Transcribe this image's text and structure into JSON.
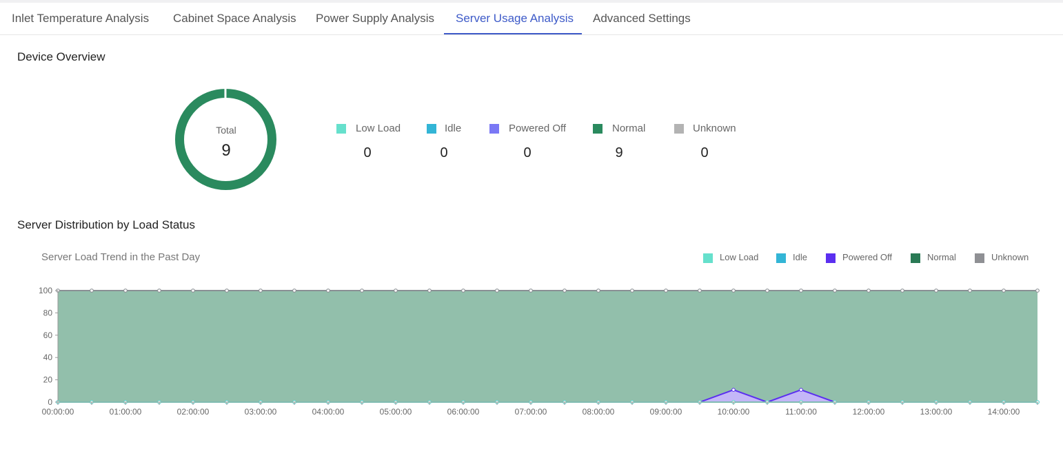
{
  "tabs": [
    {
      "label": "Inlet Temperature Analysis",
      "active": false
    },
    {
      "label": "Cabinet Space Analysis",
      "active": false
    },
    {
      "label": "Power Supply Analysis",
      "active": false
    },
    {
      "label": "Server Usage Analysis",
      "active": true
    },
    {
      "label": "Advanced Settings",
      "active": false
    }
  ],
  "overview": {
    "title": "Device Overview",
    "total_label": "Total",
    "total_value": "9",
    "legend": [
      {
        "label": "Low Load",
        "count": "0",
        "color": "#66e0cc"
      },
      {
        "label": "Idle",
        "count": "0",
        "color": "#33b5d6"
      },
      {
        "label": "Powered Off",
        "count": "0",
        "color": "#7a78f5"
      },
      {
        "label": "Normal",
        "count": "9",
        "color": "#2a8a5e"
      },
      {
        "label": "Unknown",
        "count": "0",
        "color": "#b3b3b3"
      }
    ]
  },
  "distribution": {
    "title": "Server Distribution by Load Status",
    "chart_title": "Server Load Trend in the Past Day",
    "legend": [
      {
        "label": "Low Load",
        "color": "#66e0cc"
      },
      {
        "label": "Idle",
        "color": "#33b5d6"
      },
      {
        "label": "Powered Off",
        "color": "#5b2ff0"
      },
      {
        "label": "Normal",
        "color": "#2a7a55"
      },
      {
        "label": "Unknown",
        "color": "#8f9094"
      }
    ]
  },
  "chart_data": {
    "type": "area",
    "title": "Server Load Trend in the Past Day",
    "xlabel": "",
    "ylabel": "",
    "ylim": [
      0,
      100
    ],
    "yticks": [
      0,
      20,
      40,
      60,
      80,
      100
    ],
    "x": [
      "00:00:00",
      "00:30:00",
      "01:00:00",
      "01:30:00",
      "02:00:00",
      "02:30:00",
      "03:00:00",
      "03:30:00",
      "04:00:00",
      "04:30:00",
      "05:00:00",
      "05:30:00",
      "06:00:00",
      "06:30:00",
      "07:00:00",
      "07:30:00",
      "08:00:00",
      "08:30:00",
      "09:00:00",
      "09:30:00",
      "10:00:00",
      "10:30:00",
      "11:00:00",
      "11:30:00",
      "12:00:00",
      "12:30:00",
      "13:00:00",
      "13:30:00",
      "14:00:00",
      "14:30:00"
    ],
    "xtick_labels": [
      "00:00:00",
      "01:00:00",
      "02:00:00",
      "03:00:00",
      "04:00:00",
      "05:00:00",
      "06:00:00",
      "07:00:00",
      "08:00:00",
      "09:00:00",
      "10:00:00",
      "11:00:00",
      "12:00:00",
      "13:00:00",
      "14:00:00"
    ],
    "series": [
      {
        "name": "Low Load",
        "color": "#66e0cc",
        "values": [
          0,
          0,
          0,
          0,
          0,
          0,
          0,
          0,
          0,
          0,
          0,
          0,
          0,
          0,
          0,
          0,
          0,
          0,
          0,
          0,
          0,
          0,
          0,
          0,
          0,
          0,
          0,
          0,
          0,
          0
        ]
      },
      {
        "name": "Idle",
        "color": "#33b5d6",
        "values": [
          0,
          0,
          0,
          0,
          0,
          0,
          0,
          0,
          0,
          0,
          0,
          0,
          0,
          0,
          0,
          0,
          0,
          0,
          0,
          0,
          0,
          0,
          0,
          0,
          0,
          0,
          0,
          0,
          0,
          0
        ]
      },
      {
        "name": "Powered Off",
        "color": "#5b2ff0",
        "values": [
          0,
          0,
          0,
          0,
          0,
          0,
          0,
          0,
          0,
          0,
          0,
          0,
          0,
          0,
          0,
          0,
          0,
          0,
          0,
          0,
          11,
          0,
          11,
          0,
          0,
          0,
          0,
          0,
          0,
          0
        ]
      },
      {
        "name": "Normal",
        "color": "#2a7a55",
        "values": [
          100,
          100,
          100,
          100,
          100,
          100,
          100,
          100,
          100,
          100,
          100,
          100,
          100,
          100,
          100,
          100,
          100,
          100,
          100,
          100,
          89,
          100,
          89,
          100,
          100,
          100,
          100,
          100,
          100,
          100
        ]
      },
      {
        "name": "Unknown",
        "color": "#8f9094",
        "values": [
          0,
          0,
          0,
          0,
          0,
          0,
          0,
          0,
          0,
          0,
          0,
          0,
          0,
          0,
          0,
          0,
          0,
          0,
          0,
          0,
          0,
          0,
          0,
          0,
          0,
          0,
          0,
          0,
          0,
          0
        ]
      }
    ],
    "stacked": true,
    "grid": false,
    "legend_position": "top-right"
  }
}
